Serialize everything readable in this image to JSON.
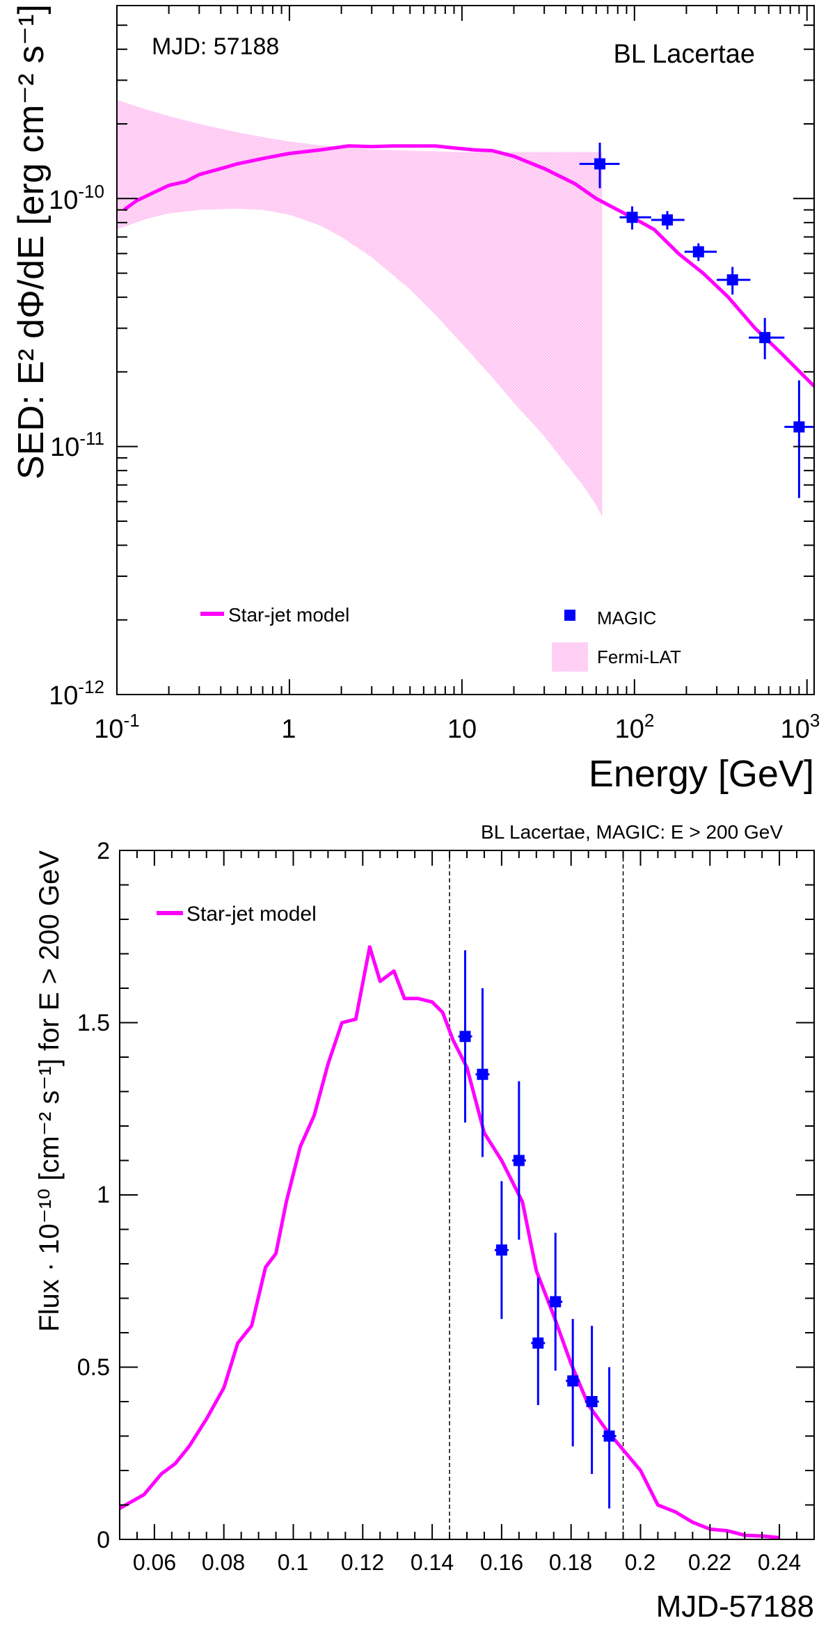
{
  "chart_data": [
    {
      "type": "line+scatter",
      "title": "BL Lacertae",
      "annotation": "MJD: 57188",
      "xlabel": "Energy [GeV]",
      "ylabel": "SED: E² dΦ/dE [erg cm⁻² s⁻¹]",
      "xscale": "log",
      "yscale": "log",
      "xlim": [
        0.1,
        1100
      ],
      "ylim": [
        1e-12,
        6e-10
      ],
      "x_ticks": [
        {
          "base": "10",
          "exp": "-1",
          "value": 0.1
        },
        {
          "base": "1",
          "exp": "",
          "value": 1
        },
        {
          "base": "10",
          "exp": "",
          "value": 10
        },
        {
          "base": "10",
          "exp": "2",
          "value": 100
        },
        {
          "base": "10",
          "exp": "3",
          "value": 1000
        }
      ],
      "y_ticks": [
        {
          "base": "10",
          "exp": "-12",
          "value": 1e-12
        },
        {
          "base": "10",
          "exp": "-11",
          "value": 1e-11
        },
        {
          "base": "10",
          "exp": "-10",
          "value": 1e-10
        }
      ],
      "legend": {
        "model": "Star-jet model",
        "magic": "MAGIC",
        "fermi": "Fermi-LAT"
      },
      "model": {
        "name": "Star-jet model",
        "x": [
          0.11,
          0.13,
          0.16,
          0.2,
          0.25,
          0.3,
          0.4,
          0.5,
          0.7,
          1.0,
          1.5,
          2.2,
          3.0,
          4.0,
          5.5,
          7.0,
          9.0,
          12,
          15,
          20,
          30,
          45,
          60,
          80,
          100,
          130,
          180,
          250,
          350,
          500,
          700,
          1100
        ],
        "y": [
          9e-11,
          9.8e-11,
          1.05e-10,
          1.13e-10,
          1.17e-10,
          1.25e-10,
          1.32e-10,
          1.38e-10,
          1.45e-10,
          1.52e-10,
          1.57e-10,
          1.63e-10,
          1.62e-10,
          1.63e-10,
          1.63e-10,
          1.63e-10,
          1.6e-10,
          1.57e-10,
          1.56e-10,
          1.48e-10,
          1.32e-10,
          1.15e-10,
          1e-10,
          9e-11,
          8.3e-11,
          7.5e-11,
          6e-11,
          5e-11,
          4e-11,
          3e-11,
          2.4e-11,
          1.75e-11
        ],
        "color": "#ff00ff"
      },
      "fermi_band": {
        "name": "Fermi-LAT",
        "x": [
          0.1,
          0.15,
          0.2,
          0.3,
          0.5,
          0.7,
          1.0,
          1.5,
          2.0,
          3.0,
          5.0,
          7.0,
          10,
          15,
          20,
          30,
          40,
          50,
          60,
          65
        ],
        "upper": [
          2.5e-10,
          2.28e-10,
          2.15e-10,
          2e-10,
          1.85e-10,
          1.77e-10,
          1.7e-10,
          1.64e-10,
          1.61e-10,
          1.58e-10,
          1.56e-10,
          1.55e-10,
          1.54e-10,
          1.54e-10,
          1.54e-10,
          1.54e-10,
          1.54e-10,
          1.54e-10,
          1.54e-10,
          1.54e-10
        ],
        "lower": [
          7.5e-11,
          8.3e-11,
          8.7e-11,
          9e-11,
          9.1e-11,
          9e-11,
          8.6e-11,
          7.8e-11,
          7e-11,
          5.8e-11,
          4.3e-11,
          3.4e-11,
          2.6e-11,
          1.9e-11,
          1.5e-11,
          1.1e-11,
          8.5e-12,
          7e-12,
          5.8e-12,
          5.2e-12
        ],
        "color": "#ffaaf0"
      },
      "magic": {
        "name": "MAGIC",
        "points": [
          {
            "x": 63,
            "y": 1.38e-10,
            "xlo": 48,
            "xhi": 82,
            "ylo": 1.1e-10,
            "yhi": 1.68e-10
          },
          {
            "x": 97,
            "y": 8.4e-11,
            "xlo": 82,
            "xhi": 125,
            "ylo": 7.5e-11,
            "yhi": 9.3e-11
          },
          {
            "x": 155,
            "y": 8.2e-11,
            "xlo": 125,
            "xhi": 195,
            "ylo": 7.5e-11,
            "yhi": 8.9e-11
          },
          {
            "x": 235,
            "y": 6.1e-11,
            "xlo": 195,
            "xhi": 300,
            "ylo": 5.6e-11,
            "yhi": 6.6e-11
          },
          {
            "x": 370,
            "y": 4.7e-11,
            "xlo": 300,
            "xhi": 470,
            "ylo": 4.1e-11,
            "yhi": 5.3e-11
          },
          {
            "x": 570,
            "y": 2.75e-11,
            "xlo": 460,
            "xhi": 740,
            "ylo": 2.25e-11,
            "yhi": 3.3e-11
          },
          {
            "x": 900,
            "y": 1.2e-11,
            "xlo": 740,
            "xhi": 1100,
            "ylo": 6.2e-12,
            "yhi": 1.85e-11
          }
        ],
        "color": "#0000ff"
      }
    },
    {
      "type": "line+scatter",
      "title": "BL Lacertae, MAGIC: E > 200 GeV",
      "xlabel": "MJD-57188",
      "ylabel": "Flux · 10⁻¹⁰ [cm⁻² s⁻¹] for E > 200 GeV",
      "xlim": [
        0.05,
        0.25
      ],
      "ylim": [
        0,
        2
      ],
      "x_ticks": [
        "0.06",
        "0.08",
        "0.1",
        "0.12",
        "0.14",
        "0.16",
        "0.18",
        "0.2",
        "0.22",
        "0.24"
      ],
      "y_ticks": [
        "0",
        "0.5",
        "1",
        "1.5",
        "2"
      ],
      "vlines": [
        0.145,
        0.195
      ],
      "legend": {
        "model": "Star-jet model"
      },
      "model": {
        "name": "Star-jet model",
        "x": [
          0.05,
          0.057,
          0.062,
          0.066,
          0.07,
          0.075,
          0.08,
          0.084,
          0.088,
          0.092,
          0.095,
          0.098,
          0.102,
          0.106,
          0.11,
          0.114,
          0.118,
          0.122,
          0.125,
          0.129,
          0.132,
          0.136,
          0.14,
          0.143,
          0.146,
          0.15,
          0.155,
          0.16,
          0.166,
          0.17,
          0.175,
          0.18,
          0.185,
          0.19,
          0.195,
          0.2,
          0.205,
          0.21,
          0.215,
          0.22,
          0.225,
          0.23,
          0.235,
          0.24
        ],
        "y": [
          0.09,
          0.13,
          0.19,
          0.22,
          0.27,
          0.35,
          0.44,
          0.57,
          0.62,
          0.79,
          0.83,
          0.98,
          1.14,
          1.23,
          1.38,
          1.5,
          1.51,
          1.72,
          1.62,
          1.65,
          1.57,
          1.57,
          1.56,
          1.53,
          1.45,
          1.37,
          1.18,
          1.1,
          0.98,
          0.78,
          0.65,
          0.51,
          0.39,
          0.32,
          0.26,
          0.2,
          0.1,
          0.08,
          0.05,
          0.03,
          0.025,
          0.012,
          0.01,
          0.005
        ],
        "color": "#ff00ff"
      },
      "magic": {
        "name": "MAGIC",
        "points": [
          {
            "x": 0.1495,
            "y": 1.46,
            "xerr": 0.002,
            "ylo": 1.21,
            "yhi": 1.71
          },
          {
            "x": 0.1545,
            "y": 1.35,
            "xerr": 0.002,
            "ylo": 1.11,
            "yhi": 1.6
          },
          {
            "x": 0.16,
            "y": 0.84,
            "xerr": 0.002,
            "ylo": 0.64,
            "yhi": 1.04
          },
          {
            "x": 0.165,
            "y": 1.1,
            "xerr": 0.002,
            "ylo": 0.87,
            "yhi": 1.33
          },
          {
            "x": 0.1705,
            "y": 0.57,
            "xerr": 0.002,
            "ylo": 0.39,
            "yhi": 0.76
          },
          {
            "x": 0.1755,
            "y": 0.69,
            "xerr": 0.002,
            "ylo": 0.49,
            "yhi": 0.89
          },
          {
            "x": 0.1805,
            "y": 0.46,
            "xerr": 0.002,
            "ylo": 0.27,
            "yhi": 0.64
          },
          {
            "x": 0.186,
            "y": 0.4,
            "xerr": 0.002,
            "ylo": 0.19,
            "yhi": 0.62
          },
          {
            "x": 0.191,
            "y": 0.3,
            "xerr": 0.002,
            "ylo": 0.09,
            "yhi": 0.5
          }
        ],
        "color": "#0000ff"
      }
    }
  ]
}
